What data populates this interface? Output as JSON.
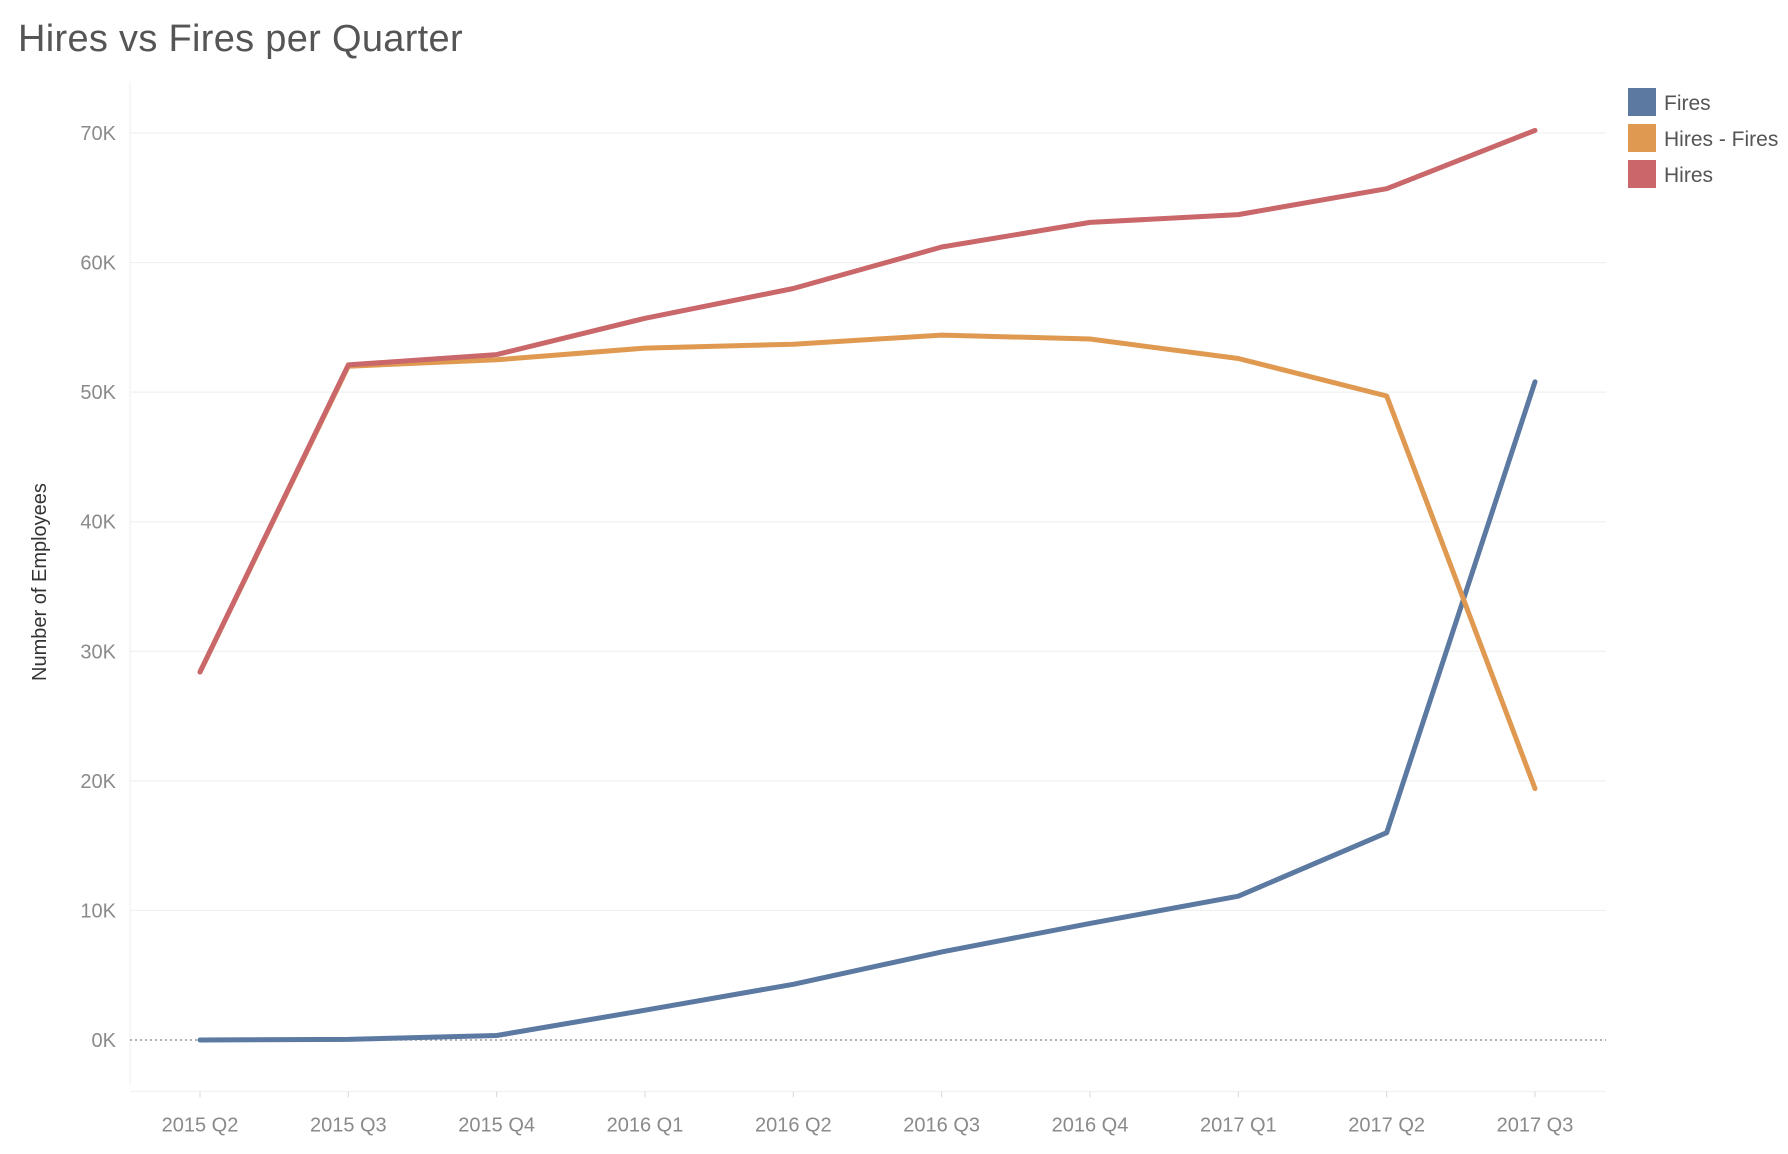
{
  "chart_data": {
    "type": "line",
    "title": "Hires vs Fires per Quarter",
    "xlabel": "",
    "ylabel": "Number of Employees",
    "categories": [
      "2015 Q2",
      "2015 Q3",
      "2015 Q4",
      "2016 Q1",
      "2016 Q2",
      "2016 Q3",
      "2016 Q4",
      "2017 Q1",
      "2017 Q2",
      "2017 Q3"
    ],
    "ylim": [
      -3500,
      74000
    ],
    "yticks": [
      0,
      10000,
      20000,
      30000,
      40000,
      50000,
      60000,
      70000
    ],
    "ytick_labels": [
      "0K",
      "10K",
      "20K",
      "30K",
      "40K",
      "50K",
      "60K",
      "70K"
    ],
    "grid": true,
    "zero_line": "dotted",
    "legend_position": "top-right",
    "series": [
      {
        "name": "Fires",
        "color": "#5b79a1",
        "values": [
          0,
          50,
          350,
          2300,
          4300,
          6800,
          9000,
          11100,
          16000,
          50800
        ]
      },
      {
        "name": "Hires - Fires",
        "color": "#df9950",
        "values": [
          28400,
          52000,
          52500,
          53400,
          53700,
          54400,
          54100,
          52600,
          49700,
          19400
        ]
      },
      {
        "name": "Hires",
        "color": "#c9676a",
        "values": [
          28400,
          52100,
          52900,
          55700,
          58000,
          61200,
          63100,
          63700,
          65700,
          70200
        ]
      }
    ]
  }
}
